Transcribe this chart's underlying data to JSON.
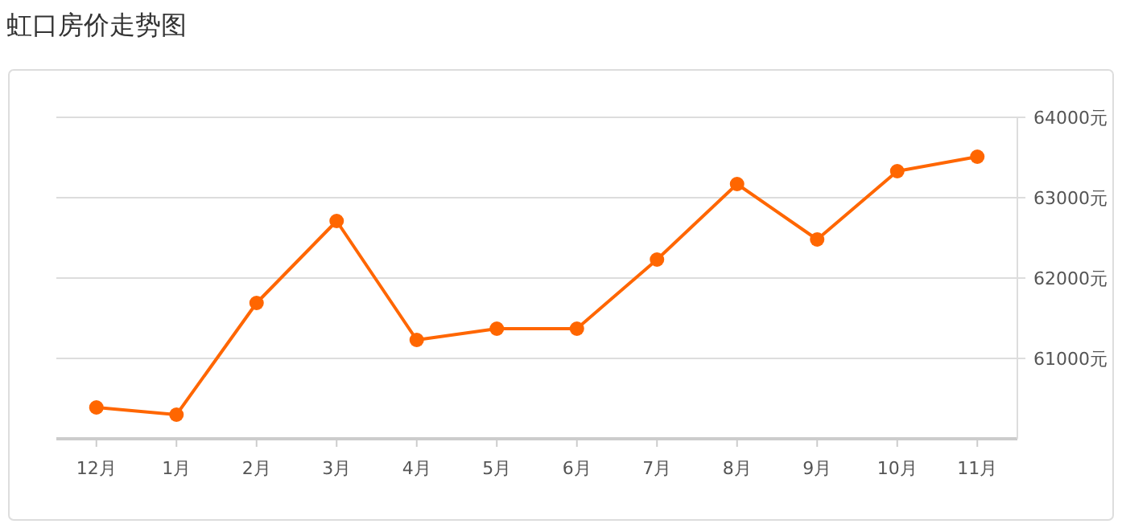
{
  "chart_data": {
    "type": "line",
    "title": "虹口房价走势图",
    "categories": [
      "12月",
      "1月",
      "2月",
      "3月",
      "4月",
      "5月",
      "6月",
      "7月",
      "8月",
      "9月",
      "10月",
      "11月"
    ],
    "series": [
      {
        "color": "#ff6600",
        "values": [
          60390,
          60300,
          61690,
          62710,
          61230,
          61370,
          61370,
          62230,
          63170,
          62480,
          63330,
          63510
        ]
      }
    ],
    "ylim": [
      60000,
      64000
    ],
    "yticks": [
      {
        "value": 61000,
        "label": "61000元"
      },
      {
        "value": 62000,
        "label": "62000元"
      },
      {
        "value": 63000,
        "label": "63000元"
      },
      {
        "value": 64000,
        "label": "64000元"
      }
    ],
    "grid": "y",
    "marker": "circle",
    "line_style": "solid"
  }
}
